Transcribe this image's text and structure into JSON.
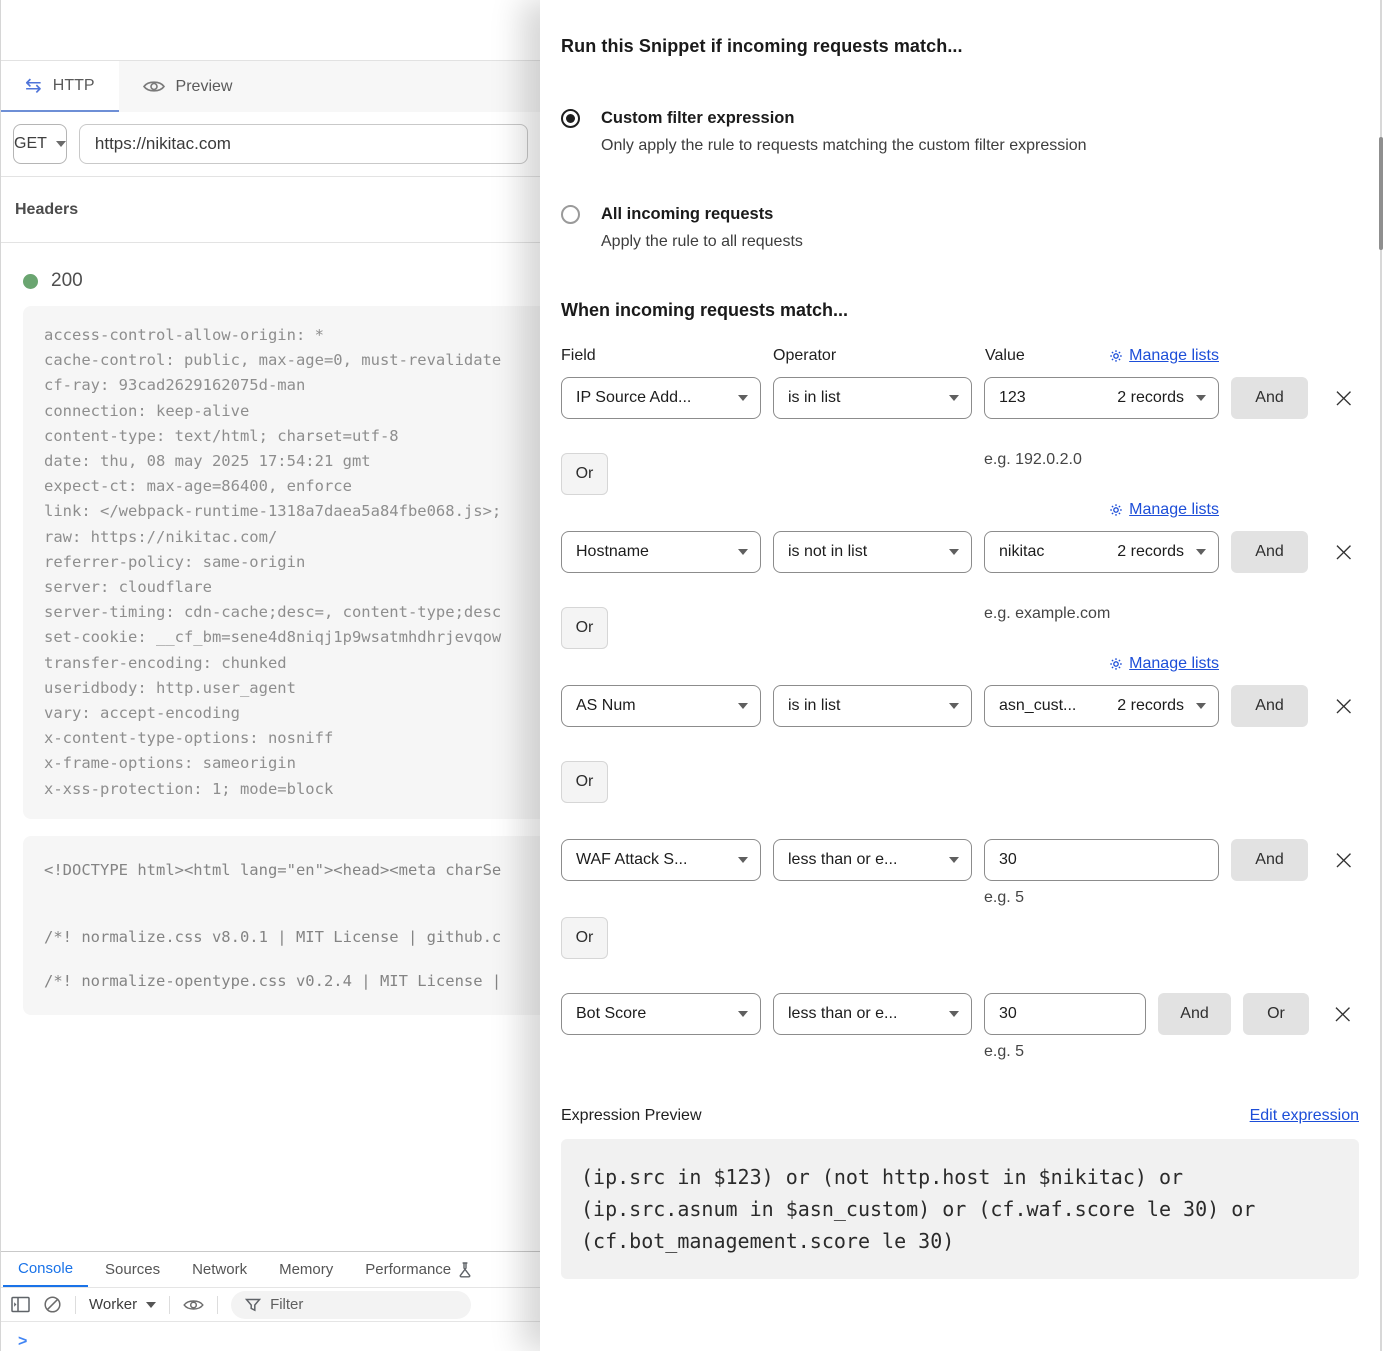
{
  "colors": {
    "accent_blue": "#1a73e8",
    "link_blue": "#1d4ed8",
    "status_green": "#6aa570"
  },
  "left_panel": {
    "tabs": {
      "http": "HTTP",
      "preview": "Preview"
    },
    "request": {
      "method": "GET",
      "url": "https://nikitac.com"
    },
    "headers_label": "Headers",
    "status_code": "200",
    "response_headers": [
      "access-control-allow-origin: *",
      "cache-control: public, max-age=0, must-revalidate",
      "cf-ray: 93cad2629162075d-man",
      "connection: keep-alive",
      "content-type: text/html; charset=utf-8",
      "date: thu, 08 may 2025 17:54:21 gmt",
      "expect-ct: max-age=86400, enforce",
      "link: </webpack-runtime-1318a7daea5a84fbe068.js>;",
      "raw: https://nikitac.com/",
      "referrer-policy: same-origin",
      "server: cloudflare",
      "server-timing: cdn-cache;desc=, content-type;desc",
      "set-cookie: __cf_bm=sene4d8niqj1p9wsatmhdhrjevqow",
      "transfer-encoding: chunked",
      "useridbody: http.user_agent",
      "vary: accept-encoding",
      "x-content-type-options: nosniff",
      "x-frame-options: sameorigin",
      "x-xss-protection: 1; mode=block"
    ],
    "body_preview": {
      "line1": "<!DOCTYPE html><html lang=\"en\"><head><meta charSe",
      "line2": "/*! normalize.css v8.0.1 | MIT License | github.c",
      "line3": "/*! normalize-opentype.css v0.2.4 | MIT License |"
    },
    "devtools": {
      "tabs": [
        "Console",
        "Sources",
        "Network",
        "Memory",
        "Performance"
      ],
      "worker_label": "Worker",
      "filter_placeholder": "Filter",
      "prompt": ">"
    }
  },
  "drawer": {
    "title": "Run this Snippet if incoming requests match...",
    "radios": [
      {
        "label": "Custom filter expression",
        "desc": "Only apply the rule to requests matching the custom filter expression",
        "checked": true
      },
      {
        "label": "All incoming requests",
        "desc": "Apply the rule to all requests",
        "checked": false
      }
    ],
    "match_title": "When incoming requests match...",
    "columns": {
      "field": "Field",
      "operator": "Operator",
      "value": "Value"
    },
    "manage_lists_label": "Manage lists",
    "and_label": "And",
    "or_label": "Or",
    "rows": [
      {
        "field": "IP Source Add...",
        "operator": "is in list",
        "value_name": "123",
        "value_records": "2 records",
        "hint": "e.g. 192.0.2.0"
      },
      {
        "field": "Hostname",
        "operator": "is not in list",
        "value_name": "nikitac",
        "value_records": "2 records",
        "hint": "e.g. example.com"
      },
      {
        "field": "AS Num",
        "operator": "is in list",
        "value_name": "asn_cust...",
        "value_records": "2 records",
        "hint": ""
      },
      {
        "field": "WAF Attack S...",
        "operator": "less than or e...",
        "value_input": "30",
        "hint": "e.g. 5"
      },
      {
        "field": "Bot Score",
        "operator": "less than or e...",
        "value_input": "30",
        "hint": "e.g. 5"
      }
    ],
    "expression_preview": {
      "label": "Expression Preview",
      "edit_label": "Edit expression",
      "code_line1": "(ip.src in $123) or (not http.host in $nikitac) or",
      "code_line2": "(ip.src.asnum in $asn_custom) or (cf.waf.score le 30) or",
      "code_line3": "(cf.bot_management.score le 30)"
    }
  }
}
